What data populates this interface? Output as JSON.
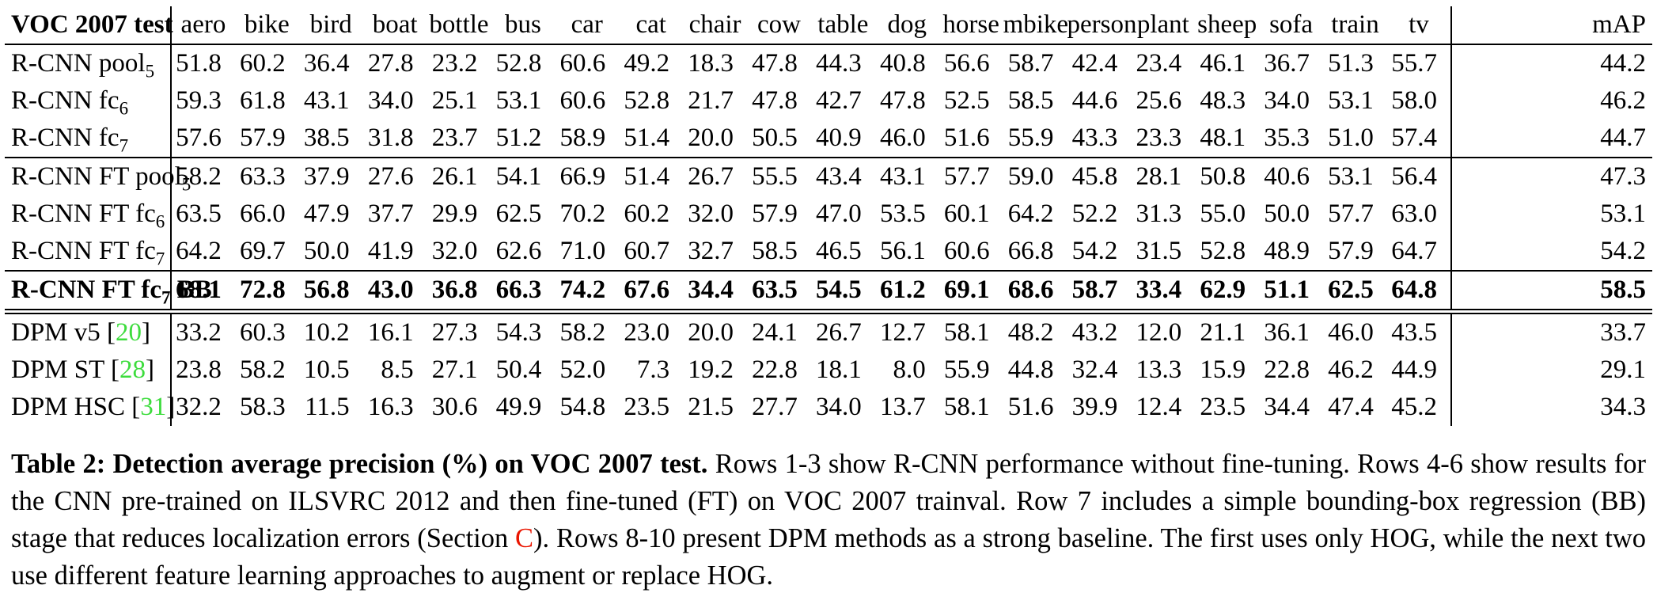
{
  "table": {
    "corner_label": "VOC 2007 test",
    "columns": [
      "aero",
      "bike",
      "bird",
      "boat",
      "bottle",
      "bus",
      "car",
      "cat",
      "chair",
      "cow",
      "table",
      "dog",
      "horse",
      "mbike",
      "person",
      "plant",
      "sheep",
      "sofa",
      "train",
      "tv"
    ],
    "map_label": "mAP",
    "rows": [
      {
        "label": "R-CNN pool",
        "sub": "5",
        "cite": "",
        "tail": "",
        "bold": false,
        "rule_after": "none",
        "values": [
          "51.8",
          "60.2",
          "36.4",
          "27.8",
          "23.2",
          "52.8",
          "60.6",
          "49.2",
          "18.3",
          "47.8",
          "44.3",
          "40.8",
          "56.6",
          "58.7",
          "42.4",
          "23.4",
          "46.1",
          "36.7",
          "51.3",
          "55.7"
        ],
        "map": "44.2"
      },
      {
        "label": "R-CNN fc",
        "sub": "6",
        "cite": "",
        "tail": "",
        "bold": false,
        "rule_after": "none",
        "values": [
          "59.3",
          "61.8",
          "43.1",
          "34.0",
          "25.1",
          "53.1",
          "60.6",
          "52.8",
          "21.7",
          "47.8",
          "42.7",
          "47.8",
          "52.5",
          "58.5",
          "44.6",
          "25.6",
          "48.3",
          "34.0",
          "53.1",
          "58.0"
        ],
        "map": "46.2"
      },
      {
        "label": "R-CNN fc",
        "sub": "7",
        "cite": "",
        "tail": "",
        "bold": false,
        "rule_after": "single",
        "values": [
          "57.6",
          "57.9",
          "38.5",
          "31.8",
          "23.7",
          "51.2",
          "58.9",
          "51.4",
          "20.0",
          "50.5",
          "40.9",
          "46.0",
          "51.6",
          "55.9",
          "43.3",
          "23.3",
          "48.1",
          "35.3",
          "51.0",
          "57.4"
        ],
        "map": "44.7"
      },
      {
        "label": "R-CNN FT pool",
        "sub": "5",
        "cite": "",
        "tail": "",
        "bold": false,
        "rule_after": "none",
        "values": [
          "58.2",
          "63.3",
          "37.9",
          "27.6",
          "26.1",
          "54.1",
          "66.9",
          "51.4",
          "26.7",
          "55.5",
          "43.4",
          "43.1",
          "57.7",
          "59.0",
          "45.8",
          "28.1",
          "50.8",
          "40.6",
          "53.1",
          "56.4"
        ],
        "map": "47.3"
      },
      {
        "label": "R-CNN FT fc",
        "sub": "6",
        "cite": "",
        "tail": "",
        "bold": false,
        "rule_after": "none",
        "values": [
          "63.5",
          "66.0",
          "47.9",
          "37.7",
          "29.9",
          "62.5",
          "70.2",
          "60.2",
          "32.0",
          "57.9",
          "47.0",
          "53.5",
          "60.1",
          "64.2",
          "52.2",
          "31.3",
          "55.0",
          "50.0",
          "57.7",
          "63.0"
        ],
        "map": "53.1"
      },
      {
        "label": "R-CNN FT fc",
        "sub": "7",
        "cite": "",
        "tail": "",
        "bold": false,
        "rule_after": "single",
        "values": [
          "64.2",
          "69.7",
          "50.0",
          "41.9",
          "32.0",
          "62.6",
          "71.0",
          "60.7",
          "32.7",
          "58.5",
          "46.5",
          "56.1",
          "60.6",
          "66.8",
          "54.2",
          "31.5",
          "52.8",
          "48.9",
          "57.9",
          "64.7"
        ],
        "map": "54.2"
      },
      {
        "label": "R-CNN FT fc",
        "sub": "7",
        "cite": "",
        "tail": " BB",
        "bold": true,
        "rule_after": "double",
        "values": [
          "68.1",
          "72.8",
          "56.8",
          "43.0",
          "36.8",
          "66.3",
          "74.2",
          "67.6",
          "34.4",
          "63.5",
          "54.5",
          "61.2",
          "69.1",
          "68.6",
          "58.7",
          "33.4",
          "62.9",
          "51.1",
          "62.5",
          "64.8"
        ],
        "map": "58.5"
      },
      {
        "label": "DPM v5 [",
        "sub": "",
        "cite": "20",
        "tail": "]",
        "bold": false,
        "rule_after": "none",
        "values": [
          "33.2",
          "60.3",
          "10.2",
          "16.1",
          "27.3",
          "54.3",
          "58.2",
          "23.0",
          "20.0",
          "24.1",
          "26.7",
          "12.7",
          "58.1",
          "48.2",
          "43.2",
          "12.0",
          "21.1",
          "36.1",
          "46.0",
          "43.5"
        ],
        "map": "33.7"
      },
      {
        "label": "DPM ST [",
        "sub": "",
        "cite": "28",
        "tail": "]",
        "bold": false,
        "rule_after": "none",
        "values": [
          "23.8",
          "58.2",
          "10.5",
          "8.5",
          "27.1",
          "50.4",
          "52.0",
          "7.3",
          "19.2",
          "22.8",
          "18.1",
          "8.0",
          "55.9",
          "44.8",
          "32.4",
          "13.3",
          "15.9",
          "22.8",
          "46.2",
          "44.9"
        ],
        "map": "29.1"
      },
      {
        "label": "DPM HSC [",
        "sub": "",
        "cite": "31",
        "tail": "]",
        "bold": false,
        "rule_after": "none",
        "values": [
          "32.2",
          "58.3",
          "11.5",
          "16.3",
          "30.6",
          "49.9",
          "54.8",
          "23.5",
          "21.5",
          "27.7",
          "34.0",
          "13.7",
          "58.1",
          "51.6",
          "39.9",
          "12.4",
          "23.5",
          "34.4",
          "47.4",
          "45.2"
        ],
        "map": "34.3"
      }
    ]
  },
  "caption": {
    "bold_lead": "Table 2: Detection average precision (%) on VOC 2007 test.",
    "body_1": " Rows 1-3 show R-CNN performance without fine-tuning. Rows 4-6 show results for the CNN pre-trained on ILSVRC 2012 and then fine-tuned (FT) on VOC 2007 trainval. Row 7 includes a simple bounding-box regression (BB) stage that reduces localization errors (Section ",
    "section_ref": "C",
    "body_2": "). Rows 8-10 present DPM methods as a strong baseline. The first uses only HOG, while the next two use different feature learning approaches to augment or replace HOG."
  },
  "colors": {
    "citation_green": "#3ddc3d",
    "link_red": "#ea1500"
  }
}
